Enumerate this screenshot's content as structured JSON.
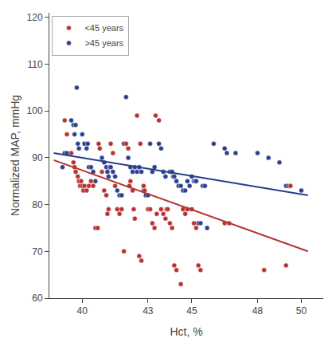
{
  "chart_data": {
    "type": "scatter",
    "xlabel": "Hct, %",
    "ylabel": "Normalized MAP, mmHg",
    "xlim": [
      38.5,
      51.0
    ],
    "ylim": [
      60,
      121
    ],
    "xticks": [
      40,
      43,
      45,
      48,
      50
    ],
    "yticks": [
      60,
      70,
      80,
      90,
      100,
      110,
      120
    ],
    "grid": false,
    "legend": "upper left",
    "series": [
      {
        "name": ">45 years",
        "type": "scatter",
        "marker": "circle",
        "color": "#2B3F8C",
        "x": [
          39.1,
          39.2,
          39.3,
          39.5,
          39.6,
          39.65,
          39.7,
          39.75,
          39.8,
          39.85,
          40.0,
          40.1,
          40.2,
          40.25,
          40.3,
          40.4,
          40.5,
          40.6,
          40.7,
          40.9,
          41.0,
          41.1,
          41.15,
          41.2,
          41.25,
          41.3,
          41.4,
          41.5,
          41.6,
          41.7,
          41.8,
          41.9,
          42.0,
          42.1,
          42.2,
          42.3,
          42.4,
          42.5,
          42.6,
          42.7,
          42.8,
          42.9,
          43.0,
          43.1,
          43.2,
          43.3,
          43.5,
          43.6,
          43.7,
          43.8,
          44.0,
          44.1,
          44.15,
          44.2,
          44.3,
          44.4,
          44.5,
          44.6,
          44.7,
          44.8,
          44.9,
          45.0,
          45.1,
          45.15,
          45.2,
          45.3,
          45.4,
          45.5,
          45.6,
          45.7,
          46.0,
          46.5,
          46.6,
          47.0,
          48.0,
          48.5,
          49.0,
          49.3,
          49.4,
          49.5,
          50.0
        ],
        "values": [
          88.0,
          91.0,
          91.0,
          98.0,
          97.0,
          95.0,
          97.0,
          105.0,
          93.0,
          92.0,
          95.0,
          93.0,
          92.0,
          93.0,
          88.0,
          88.0,
          87.0,
          85.0,
          75.0,
          90.0,
          89.0,
          88.0,
          87.0,
          86.0,
          88.0,
          88.0,
          87.0,
          86.0,
          83.0,
          82.0,
          82.0,
          93.0,
          103.0,
          90.0,
          88.0,
          87.0,
          88.0,
          87.0,
          88.0,
          87.0,
          83.0,
          82.0,
          82.0,
          93.0,
          87.0,
          88.0,
          93.0,
          92.0,
          87.0,
          86.0,
          87.0,
          87.0,
          86.0,
          86.0,
          85.0,
          84.0,
          84.0,
          83.0,
          83.0,
          85.0,
          84.0,
          86.0,
          85.0,
          85.0,
          85.0,
          76.0,
          76.0,
          84.0,
          84.0,
          75.0,
          93.0,
          92.0,
          91.0,
          91.0,
          91.0,
          90.0,
          89.0,
          84.0,
          84.0,
          84.0,
          83.0
        ]
      },
      {
        "name": "<45 years",
        "type": "scatter",
        "marker": "circle",
        "color": "#B83232",
        "x": [
          39.2,
          39.3,
          39.5,
          39.6,
          39.65,
          39.7,
          39.8,
          39.85,
          39.9,
          39.95,
          40.0,
          40.05,
          40.1,
          40.2,
          40.3,
          40.4,
          40.5,
          40.6,
          40.7,
          40.75,
          40.8,
          40.9,
          41.0,
          41.1,
          41.15,
          41.2,
          41.3,
          41.4,
          41.5,
          41.6,
          41.7,
          41.8,
          41.9,
          42.0,
          42.1,
          42.15,
          42.2,
          42.3,
          42.35,
          42.4,
          42.5,
          42.6,
          42.65,
          42.7,
          42.8,
          42.85,
          43.0,
          43.1,
          43.2,
          43.3,
          43.35,
          43.4,
          43.5,
          43.6,
          43.7,
          43.8,
          43.85,
          43.9,
          44.0,
          44.1,
          44.2,
          44.3,
          44.5,
          44.6,
          44.7,
          44.8,
          45.0,
          45.1,
          45.2,
          45.3,
          45.4,
          46.5,
          46.7,
          48.3,
          49.3,
          49.5
        ],
        "values": [
          98.0,
          95.0,
          91.0,
          89.0,
          88.0,
          87.0,
          86.0,
          85.0,
          84.0,
          85.0,
          84.0,
          83.0,
          84.0,
          83.0,
          84.0,
          85.0,
          84.0,
          75.0,
          75.0,
          93.0,
          92.0,
          87.0,
          83.0,
          82.0,
          78.0,
          79.0,
          93.0,
          91.0,
          84.0,
          79.0,
          78.0,
          79.0,
          70.0,
          93.0,
          92.0,
          84.0,
          85.0,
          83.0,
          79.0,
          77.0,
          99.0,
          69.0,
          93.0,
          68.0,
          84.0,
          83.0,
          79.0,
          79.0,
          76.0,
          75.0,
          99.0,
          78.0,
          98.0,
          79.0,
          78.0,
          77.0,
          79.0,
          79.0,
          76.0,
          75.0,
          67.0,
          66.0,
          63.0,
          79.0,
          78.0,
          79.0,
          79.0,
          76.0,
          75.0,
          67.0,
          66.0,
          76.0,
          76.0,
          66.0,
          67.0,
          84.0
        ]
      },
      {
        "type": "line",
        "line_style": "solid",
        "color": "#B83232",
        "x": [
          38.7,
          50.3
        ],
        "values": [
          89.5,
          70.0
        ]
      },
      {
        "type": "line",
        "line_style": "solid",
        "color": "#2B3F8C",
        "x": [
          38.7,
          50.3
        ],
        "values": [
          91.0,
          82.0
        ]
      }
    ]
  }
}
